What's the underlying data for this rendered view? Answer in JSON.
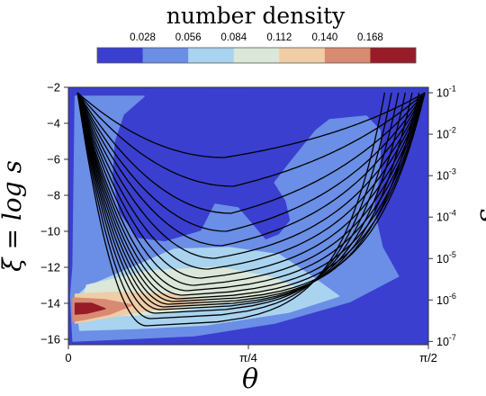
{
  "chart_data": {
    "type": "heatmap",
    "colorbar": {
      "title": "number density",
      "tick_labels": [
        "0.028",
        "0.056",
        "0.084",
        "0.112",
        "0.140",
        "0.168"
      ],
      "tick_values": [
        0.028,
        0.056,
        0.084,
        0.112,
        0.14,
        0.168
      ],
      "range": [
        0,
        0.196
      ],
      "colors": [
        "#3a3fcf",
        "#6b8ee6",
        "#a9d3ef",
        "#dbe7d8",
        "#efcda6",
        "#d98a72",
        "#971c28"
      ]
    },
    "x_axis": {
      "label": "θ",
      "range": [
        0,
        1.5708
      ],
      "ticks": [
        {
          "value": 0,
          "label": "0"
        },
        {
          "value": 0.7854,
          "label": "π/4"
        },
        {
          "value": 1.5708,
          "label": "π/2"
        }
      ]
    },
    "y_axis_left": {
      "label": "ξ = log s",
      "range": [
        -16.3,
        -2
      ],
      "ticks": [
        -2,
        -4,
        -6,
        -8,
        -10,
        -12,
        -14,
        -16
      ],
      "tick_labels": [
        "−2",
        "−4",
        "−6",
        "−8",
        "−10",
        "−12",
        "−14",
        "−16"
      ]
    },
    "y_axis_right": {
      "label": "s",
      "ticks": [
        {
          "value": -2.3026,
          "base": "10",
          "exp": "-1"
        },
        {
          "value": -4.6052,
          "base": "10",
          "exp": "-2"
        },
        {
          "value": -6.9078,
          "base": "10",
          "exp": "-3"
        },
        {
          "value": -9.2103,
          "base": "10",
          "exp": "-4"
        },
        {
          "value": -11.5129,
          "base": "10",
          "exp": "-5"
        },
        {
          "value": -13.8155,
          "base": "10",
          "exp": "-6"
        },
        {
          "value": -16.1181,
          "base": "10",
          "exp": "-7"
        }
      ]
    },
    "density_regions": [
      {
        "level": 0,
        "color": "#3a3fcf",
        "points": [
          [
            0,
            -16.3
          ],
          [
            1.5708,
            -16.3
          ],
          [
            1.5708,
            -2
          ],
          [
            0,
            -2
          ]
        ]
      },
      {
        "level": 1,
        "color": "#6b8ee6",
        "points": [
          [
            0.03,
            -2.5
          ],
          [
            0.33,
            -2.5
          ],
          [
            0.24,
            -3.5
          ],
          [
            0.2,
            -5
          ],
          [
            0.19,
            -7
          ],
          [
            0.22,
            -9
          ],
          [
            0.3,
            -10.4
          ],
          [
            0.42,
            -10.6
          ],
          [
            0.58,
            -10
          ],
          [
            0.64,
            -8.5
          ],
          [
            0.74,
            -8.7
          ],
          [
            0.86,
            -10.5
          ],
          [
            0.92,
            -10.2
          ],
          [
            0.97,
            -9.4
          ],
          [
            0.95,
            -8.3
          ],
          [
            0.9,
            -7.3
          ],
          [
            0.96,
            -6.3
          ],
          [
            1.08,
            -4.4
          ],
          [
            1.14,
            -3.8
          ],
          [
            1.3,
            -3.6
          ],
          [
            1.36,
            -4.4
          ],
          [
            1.36,
            -6.7
          ],
          [
            1.33,
            -8.7
          ],
          [
            1.37,
            -10.9
          ],
          [
            1.44,
            -12.5
          ],
          [
            1.23,
            -13.9
          ],
          [
            0.9,
            -15.1
          ],
          [
            0.55,
            -15.8
          ],
          [
            0.2,
            -16
          ],
          [
            0.02,
            -16.1
          ],
          [
            0.01,
            -13.6
          ],
          [
            0.02,
            -12
          ],
          [
            0.03,
            -2.5
          ]
        ]
      },
      {
        "level": 0,
        "color": "#3a3fcf",
        "points": [
          [
            0.6,
            -2.5
          ],
          [
            0.78,
            -2.5
          ],
          [
            0.84,
            -3.1
          ],
          [
            0.76,
            -3.6
          ],
          [
            0.66,
            -3.4
          ]
        ]
      },
      {
        "level": 2,
        "color": "#a9d3ef",
        "points": [
          [
            0.28,
            -12
          ],
          [
            0.46,
            -11
          ],
          [
            0.7,
            -10.9
          ],
          [
            0.92,
            -11.3
          ],
          [
            1.06,
            -12.5
          ],
          [
            1.18,
            -13.6
          ],
          [
            0.96,
            -14.5
          ],
          [
            0.6,
            -15.2
          ],
          [
            0.3,
            -15.4
          ],
          [
            0.05,
            -15.5
          ],
          [
            0.03,
            -13.7
          ],
          [
            0.08,
            -13.1
          ]
        ]
      },
      {
        "level": 3,
        "color": "#dbe7d8",
        "points": [
          [
            0.08,
            -13
          ],
          [
            0.35,
            -12.2
          ],
          [
            0.66,
            -12
          ],
          [
            0.9,
            -12.6
          ],
          [
            1.02,
            -13.3
          ],
          [
            0.7,
            -14
          ],
          [
            0.36,
            -14.6
          ],
          [
            0.04,
            -14.8
          ]
        ]
      },
      {
        "level": 4,
        "color": "#efcda6",
        "points": [
          [
            0.03,
            -13.5
          ],
          [
            0.2,
            -13.4
          ],
          [
            0.45,
            -13.5
          ],
          [
            0.6,
            -13.9
          ],
          [
            0.35,
            -14.4
          ],
          [
            0.12,
            -14.9
          ],
          [
            0.03,
            -15.1
          ]
        ]
      },
      {
        "level": 5,
        "color": "#d98a72",
        "points": [
          [
            0.02,
            -13.7
          ],
          [
            0.16,
            -13.8
          ],
          [
            0.28,
            -14.1
          ],
          [
            0.18,
            -14.6
          ],
          [
            0.07,
            -14.9
          ],
          [
            0.02,
            -15
          ]
        ]
      },
      {
        "level": 6,
        "color": "#971c28",
        "points": [
          [
            0.03,
            -14
          ],
          [
            0.1,
            -14
          ],
          [
            0.16,
            -14.3
          ],
          [
            0.08,
            -14.55
          ],
          [
            0.03,
            -14.6
          ]
        ]
      }
    ],
    "curves": [
      {
        "min_theta": 0.68,
        "min_xi": -5.9,
        "k": 2.6,
        "right_theta": 1.555,
        "right_xi": -2.3
      },
      {
        "min_theta": 0.72,
        "min_xi": -7.5,
        "k": 2.6,
        "right_theta": 1.555,
        "right_xi": -2.3
      },
      {
        "min_theta": 0.71,
        "min_xi": -9,
        "k": 3.6,
        "right_theta": 1.555,
        "right_xi": -2.3
      },
      {
        "min_theta": 0.69,
        "min_xi": -10,
        "k": 5.5,
        "right_theta": 1.555,
        "right_xi": -2.3
      },
      {
        "min_theta": 0.67,
        "min_xi": -10.8,
        "k": 7.8,
        "right_theta": 1.555,
        "right_xi": -2.3
      },
      {
        "min_theta": 0.64,
        "min_xi": -11.5,
        "k": 12,
        "right_theta": 1.555,
        "right_xi": -2.3
      },
      {
        "min_theta": 0.61,
        "min_xi": -12.1,
        "k": 17,
        "right_theta": 1.555,
        "right_xi": -2.3
      },
      {
        "min_theta": 0.58,
        "min_xi": -12.6,
        "k": 25,
        "right_theta": 1.555,
        "right_xi": -2.3
      },
      {
        "min_theta": 0.55,
        "min_xi": -13,
        "k": 37,
        "right_theta": 1.555,
        "right_xi": -2.3
      },
      {
        "min_theta": 0.52,
        "min_xi": -13.3,
        "k": 55,
        "right_theta": 1.555,
        "right_xi": -2.3
      },
      {
        "min_theta": 0.5,
        "min_xi": -13.55,
        "k": 80,
        "right_theta": 1.555,
        "right_xi": -2.3
      },
      {
        "min_theta": 0.48,
        "min_xi": -13.75,
        "k": 110,
        "right_theta": 1.555,
        "right_xi": -2.3
      },
      {
        "min_theta": 0.46,
        "min_xi": -13.9,
        "k": 150,
        "right_theta": 1.555,
        "right_xi": -2.3
      },
      {
        "min_theta": 0.44,
        "min_xi": -14.05,
        "k": 180,
        "right_theta": 1.53,
        "right_xi": -2.3
      },
      {
        "min_theta": 0.42,
        "min_xi": -14.2,
        "k": 200,
        "right_theta": 1.5,
        "right_xi": -2.3
      },
      {
        "min_theta": 0.4,
        "min_xi": -14.35,
        "k": 220,
        "right_theta": 1.47,
        "right_xi": -2.3
      },
      {
        "min_theta": 0.38,
        "min_xi": -14.55,
        "k": 230,
        "right_theta": 1.44,
        "right_xi": -2.3
      },
      {
        "min_theta": 0.36,
        "min_xi": -14.85,
        "k": 240,
        "right_theta": 1.41,
        "right_xi": -2.3
      },
      {
        "min_theta": 0.34,
        "min_xi": -15.25,
        "k": 250,
        "right_theta": 1.38,
        "right_xi": -2.3
      }
    ]
  }
}
